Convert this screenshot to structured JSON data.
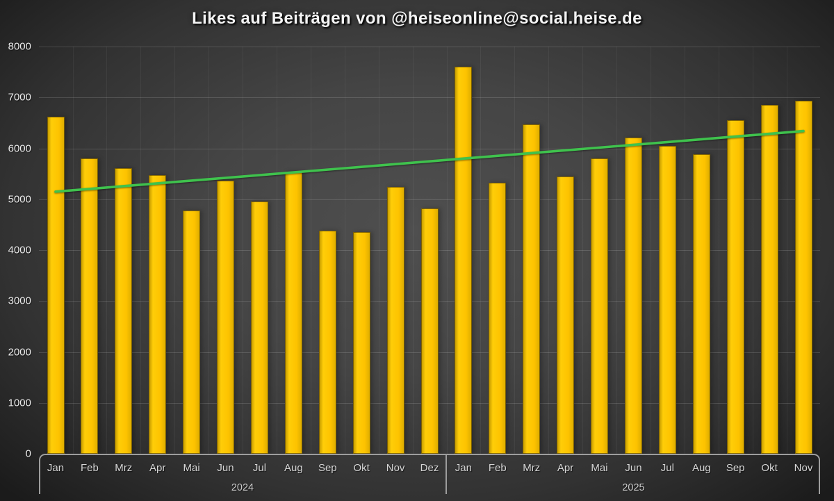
{
  "title": "Likes auf Beiträgen von @heiseonline@social.heise.de",
  "chart_data": {
    "type": "bar",
    "title": "Likes auf Beiträgen von @heiseonline@social.heise.de",
    "categories": [
      "Jan",
      "Feb",
      "Mrz",
      "Apr",
      "Mai",
      "Jun",
      "Jul",
      "Aug",
      "Sep",
      "Okt",
      "Nov",
      "Dez",
      "Jan",
      "Feb",
      "Mrz",
      "Apr",
      "Mai",
      "Jun",
      "Jul",
      "Aug",
      "Sep",
      "Okt",
      "Nov"
    ],
    "values": [
      6620,
      5800,
      5610,
      5470,
      4780,
      5360,
      4960,
      5550,
      4380,
      4350,
      5240,
      4820,
      7610,
      5320,
      6470,
      5450,
      5800,
      6210,
      6050,
      5880,
      6560,
      6850,
      6940
    ],
    "groups": [
      {
        "label": "2024",
        "count": 12
      },
      {
        "label": "2025",
        "count": 11
      }
    ],
    "xlabel": "",
    "ylabel": "",
    "ylim": [
      0,
      8000
    ],
    "y_ticks": [
      0,
      1000,
      2000,
      3000,
      4000,
      5000,
      6000,
      7000,
      8000
    ],
    "grid": true,
    "legend": false,
    "trendline": {
      "start_value": 5150,
      "end_value": 6340
    }
  },
  "colors": {
    "bar": "#fcc200",
    "trendline": "#3fc24d",
    "background_center": "#4f4f4f",
    "background_edge": "#1b1b1b",
    "axis_box_border": "#9d9d9d",
    "title_text": "#f4f4f4",
    "tick_text": "#ededed"
  }
}
